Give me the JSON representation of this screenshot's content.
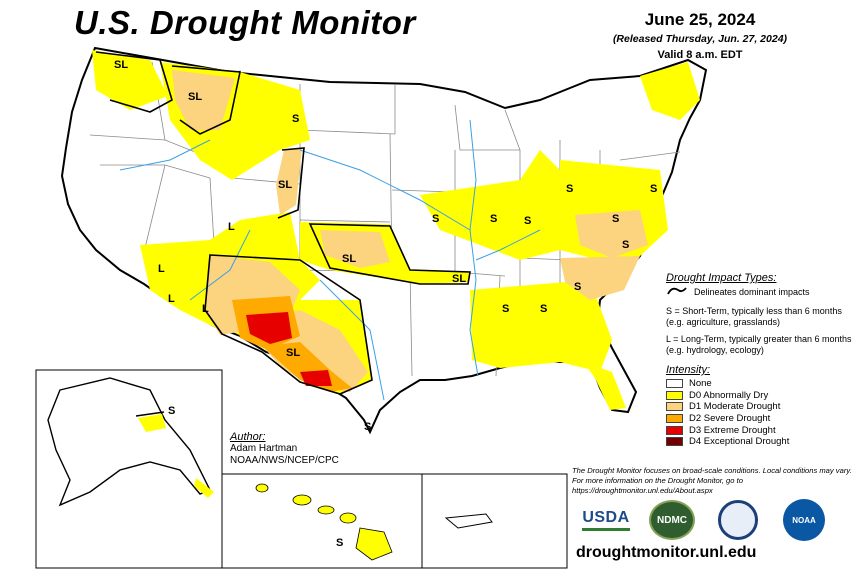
{
  "header": {
    "title": "U.S. Drought Monitor",
    "date": "June 25, 2024",
    "released": "(Released Thursday, Jun. 27, 2024)",
    "valid": "Valid 8 a.m. EDT"
  },
  "impact": {
    "title": "Drought Impact Types:",
    "delineates": "Delineates dominant impacts",
    "short_term": "S = Short-Term, typically less than 6 months (e.g. agriculture, grasslands)",
    "long_term": "L = Long-Term, typically greater than 6 months (e.g. hydrology, ecology)"
  },
  "intensity": {
    "title": "Intensity:",
    "items": [
      {
        "label": "None",
        "color": "#ffffff"
      },
      {
        "label": "D0 Abnormally Dry",
        "color": "#ffff00"
      },
      {
        "label": "D1 Moderate Drought",
        "color": "#fcd37f"
      },
      {
        "label": "D2 Severe Drought",
        "color": "#ffaa00"
      },
      {
        "label": "D3 Extreme Drought",
        "color": "#e60000"
      },
      {
        "label": "D4 Exceptional Drought",
        "color": "#730000"
      }
    ]
  },
  "author": {
    "label": "Author:",
    "name": "Adam Hartman",
    "org": "NOAA/NWS/NCEP/CPC"
  },
  "note": "The Drought Monitor focuses on broad-scale conditions. Local conditions may vary. For more information on the Drought Monitor, go to https://droughtmonitor.unl.edu/About.aspx",
  "logos": {
    "usda": "USDA",
    "ndmc": "NDMC",
    "noaa": "NOAA"
  },
  "site": "droughtmonitor.unl.edu",
  "map_labels": {
    "sl": "SL",
    "s": "S",
    "l": "L"
  },
  "colors": {
    "d0": "#ffff00",
    "d1": "#fcd37f",
    "d2": "#ffaa00",
    "d3": "#e60000",
    "d4": "#730000",
    "water": "#3aa0e8",
    "border": "#8a8a8a"
  }
}
